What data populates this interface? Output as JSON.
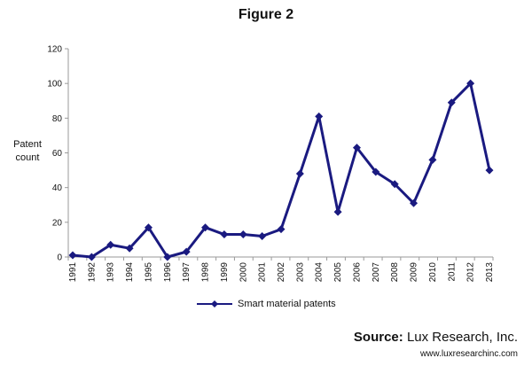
{
  "title": "Figure 2",
  "ylabel_line1": "Patent",
  "ylabel_line2": "count",
  "source_label": "Source:",
  "source_name": "Lux Research, Inc.",
  "source_url": "www.luxresearchinc.com",
  "series_color": "#1a1a80",
  "chart_data": {
    "type": "line",
    "title": "Figure 2",
    "xlabel": "",
    "ylabel": "Patent count",
    "ylim": [
      0,
      120
    ],
    "yticks": [
      0,
      20,
      40,
      60,
      80,
      100,
      120
    ],
    "grid": false,
    "legend": "bottom",
    "categories": [
      "1991",
      "1992",
      "1993",
      "1994",
      "1995",
      "1996",
      "1997",
      "1998",
      "1999",
      "2000",
      "2001",
      "2002",
      "2003",
      "2004",
      "2005",
      "2006",
      "2007",
      "2008",
      "2009",
      "2010",
      "2011",
      "2012",
      "2013"
    ],
    "series": [
      {
        "name": "Smart material patents",
        "values": [
          1,
          0,
          7,
          5,
          17,
          0,
          3,
          17,
          13,
          13,
          12,
          16,
          48,
          81,
          26,
          63,
          49,
          42,
          31,
          56,
          89,
          100,
          50
        ]
      }
    ]
  }
}
